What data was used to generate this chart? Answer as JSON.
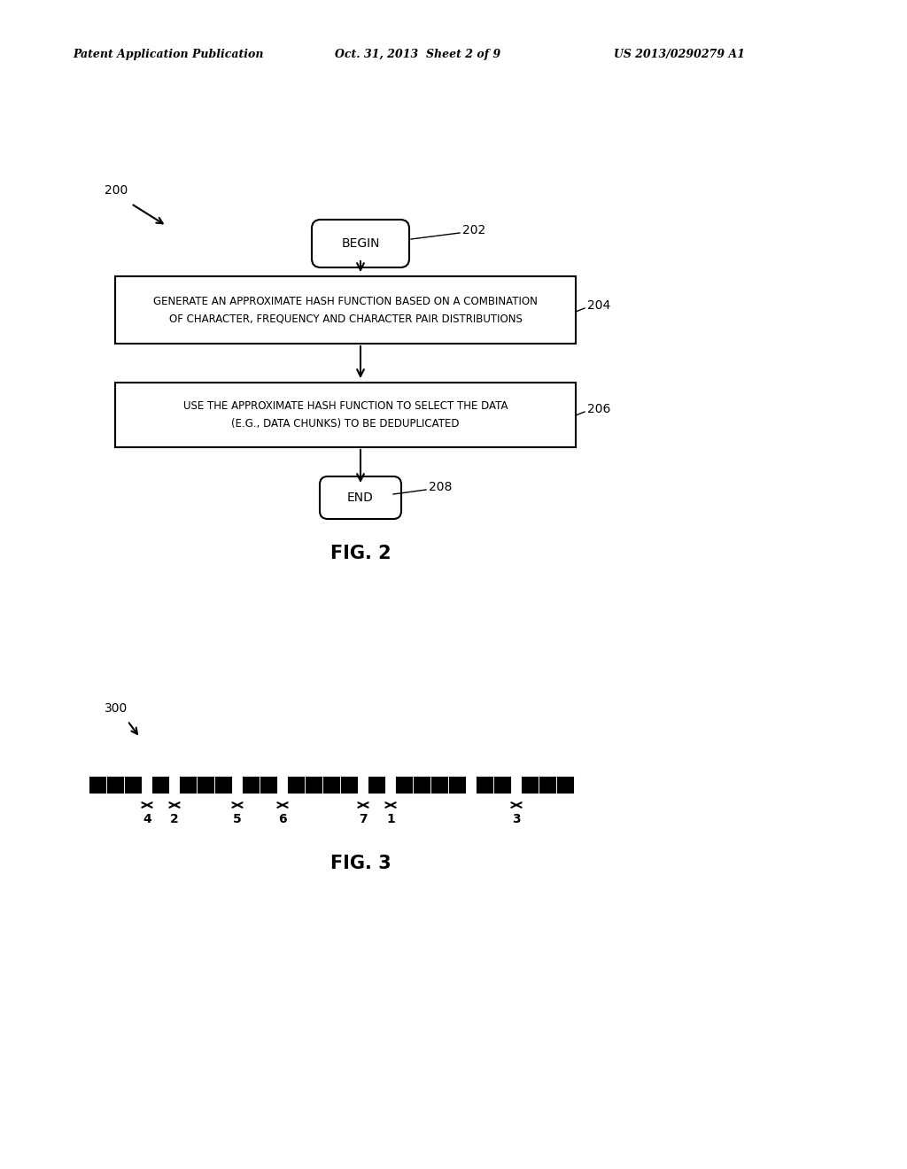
{
  "bg_color": "#ffffff",
  "header_left": "Patent Application Publication",
  "header_mid": "Oct. 31, 2013  Sheet 2 of 9",
  "header_right": "US 2013/0290279 A1",
  "fig2_ref": "200",
  "fig2_begin_ref": "202",
  "fig2_box1_ref": "204",
  "fig2_box2_ref": "206",
  "fig2_end_ref": "208",
  "fig2_begin_text": "BEGIN",
  "fig2_box1_line1": "GENERATE AN APPROXIMATE HASH FUNCTION BASED ON A COMBINATION",
  "fig2_box1_line2": "OF CHARACTER, FREQUENCY AND CHARACTER PAIR DISTRIBUTIONS",
  "fig2_box2_line1": "USE THE APPROXIMATE HASH FUNCTION TO SELECT THE DATA",
  "fig2_box2_line2": "(E.G., DATA CHUNKS) TO BE DEDUPLICATED",
  "fig2_end_text": "END",
  "fig2_caption": "FIG. 2",
  "fig3_ref": "300",
  "fig3_caption": "FIG. 3",
  "fig3_groups": [
    3,
    1,
    3,
    2,
    4,
    1,
    4,
    2,
    3
  ],
  "fig3_arrow_labels": [
    "4",
    "2",
    "5",
    "6",
    "7",
    "1",
    "3"
  ]
}
